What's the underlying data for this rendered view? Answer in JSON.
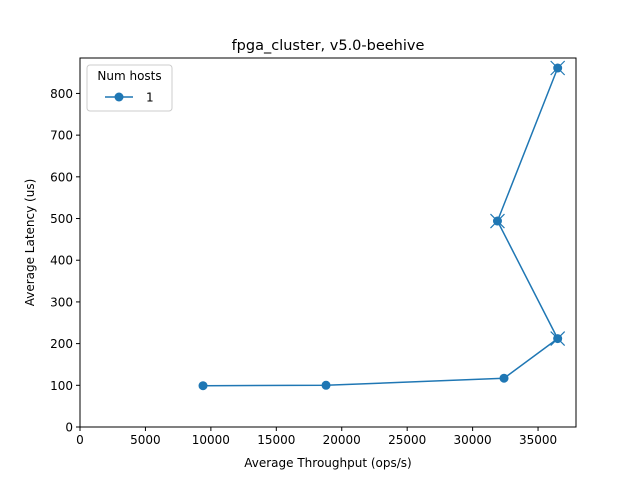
{
  "chart_data": {
    "type": "line",
    "title": "fpga_cluster, v5.0-beehive",
    "xlabel": "Average Throughput (ops/s)",
    "ylabel": "Average Latency (us)",
    "xlim": [
      0,
      37900
    ],
    "ylim": [
      0,
      885
    ],
    "xticks": [
      0,
      5000,
      10000,
      15000,
      20000,
      25000,
      30000,
      35000
    ],
    "yticks": [
      0,
      100,
      200,
      300,
      400,
      500,
      600,
      700,
      800
    ],
    "grid": false,
    "legend": {
      "title": "Num hosts",
      "placement": "top-left"
    },
    "series": [
      {
        "name": "1",
        "color": "#1f77b4",
        "marker": "circle",
        "points": [
          {
            "x": 9400,
            "y": 99
          },
          {
            "x": 18800,
            "y": 100
          },
          {
            "x": 32400,
            "y": 117
          },
          {
            "x": 36500,
            "y": 212,
            "cross": true
          },
          {
            "x": 31900,
            "y": 494,
            "cross": true
          },
          {
            "x": 36500,
            "y": 861,
            "cross": true
          }
        ]
      }
    ]
  }
}
